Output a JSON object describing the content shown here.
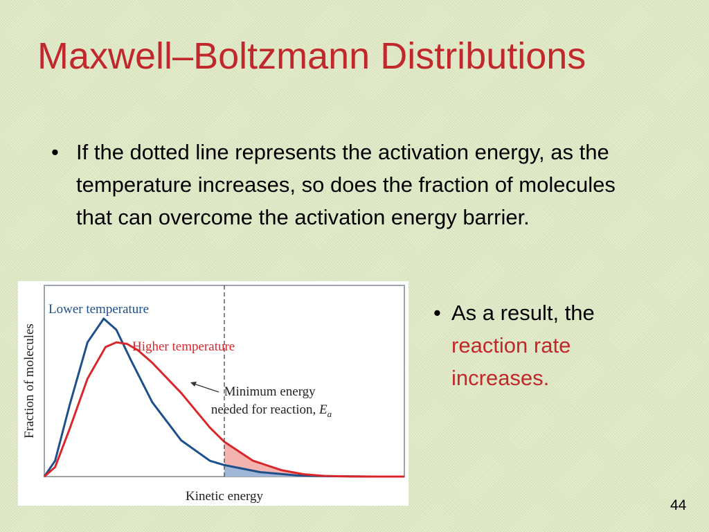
{
  "slide": {
    "title": "Maxwell–Boltzmann Distributions",
    "bullet_main": "If the dotted line represents the activation energy, as the temperature increases, so does the fraction of molecules that can overcome the activation energy barrier.",
    "bullet_side_prefix": "As a result, the ",
    "bullet_side_highlight": "reaction rate increases.",
    "bullet_symbol": "•",
    "slide_number": "44",
    "colors": {
      "title": "#c0282c",
      "highlight": "#c0282c",
      "background": "#dfe8c4"
    }
  },
  "chart_data": {
    "type": "line",
    "title": "",
    "xlabel": "Kinetic energy",
    "ylabel": "Fraction of molecules",
    "xlim": [
      0,
      1
    ],
    "ylim": [
      0,
      1
    ],
    "grid": false,
    "ticks": "none",
    "series": [
      {
        "name": "Lower temperature",
        "color": "#1d4f8b",
        "x": [
          0.0,
          0.03,
          0.07,
          0.12,
          0.165,
          0.2,
          0.24,
          0.3,
          0.38,
          0.46,
          0.5,
          0.6,
          0.7,
          0.8,
          0.9,
          1.0
        ],
        "y": [
          0.0,
          0.1,
          0.45,
          0.85,
          1.0,
          0.93,
          0.74,
          0.47,
          0.23,
          0.1,
          0.073,
          0.028,
          0.008,
          0.002,
          0.0,
          0.0
        ]
      },
      {
        "name": "Higher temperature",
        "color": "#d9262b",
        "x": [
          0.0,
          0.03,
          0.07,
          0.12,
          0.17,
          0.2,
          0.23,
          0.26,
          0.3,
          0.38,
          0.46,
          0.5,
          0.58,
          0.66,
          0.72,
          0.78,
          0.85,
          0.92,
          1.0
        ],
        "y": [
          0.0,
          0.06,
          0.3,
          0.62,
          0.82,
          0.85,
          0.84,
          0.8,
          0.72,
          0.53,
          0.31,
          0.22,
          0.1,
          0.04,
          0.015,
          0.004,
          0.001,
          0.0,
          0.0
        ]
      }
    ],
    "threshold": {
      "label": "Minimum energy needed for reaction,",
      "symbol": "E",
      "subscript": "a",
      "x": 0.5,
      "style": "dashed"
    },
    "shaded_regions": [
      {
        "series": "Higher temperature",
        "from_x": 0.5,
        "color": "#f3b3ae"
      },
      {
        "series": "Lower temperature",
        "from_x": 0.5,
        "color": "#9fb6d6"
      }
    ],
    "legend": "inline-labels"
  }
}
